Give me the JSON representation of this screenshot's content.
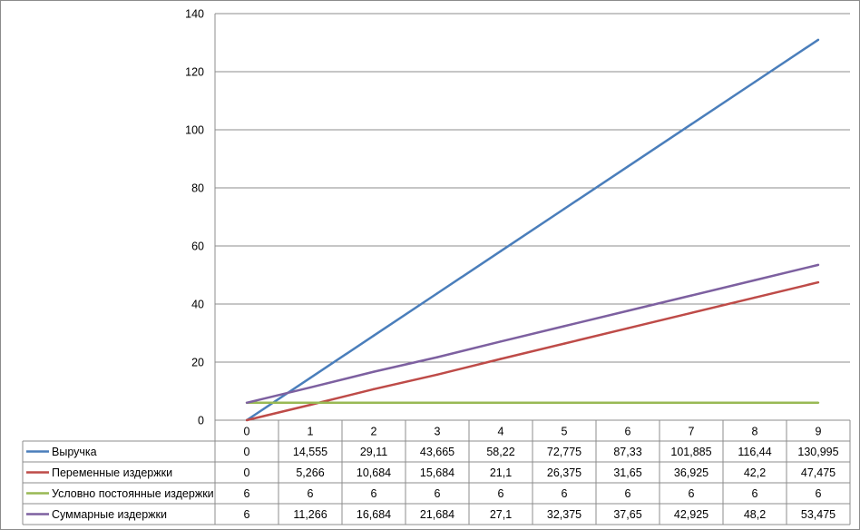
{
  "chart_data": {
    "type": "line",
    "title": "",
    "xlabel": "",
    "ylabel": "",
    "x": [
      "0",
      "1",
      "2",
      "3",
      "4",
      "5",
      "6",
      "7",
      "8",
      "9"
    ],
    "ylim": [
      0,
      140
    ],
    "yticks": [
      "0",
      "20",
      "40",
      "60",
      "80",
      "100",
      "120",
      "140"
    ],
    "grid": true,
    "legend": "data-table-bottom",
    "series": [
      {
        "name": "Выручка",
        "color": "#4a7ebb",
        "values": [
          0,
          14.555,
          29.11,
          43.665,
          58.22,
          72.775,
          87.33,
          101.885,
          116.44,
          130.995
        ],
        "labels": [
          "0",
          "14,555",
          "29,11",
          "43,665",
          "58,22",
          "72,775",
          "87,33",
          "101,885",
          "116,44",
          "130,995"
        ]
      },
      {
        "name": "Переменные издержки",
        "color": "#be4b48",
        "values": [
          0,
          5.266,
          10.684,
          15.684,
          21.1,
          26.375,
          31.65,
          36.925,
          42.2,
          47.475
        ],
        "labels": [
          "0",
          "5,266",
          "10,684",
          "15,684",
          "21,1",
          "26,375",
          "31,65",
          "36,925",
          "42,2",
          "47,475"
        ]
      },
      {
        "name": "Условно постоянные издержки",
        "color": "#98b954",
        "values": [
          6,
          6,
          6,
          6,
          6,
          6,
          6,
          6,
          6,
          6
        ],
        "labels": [
          "6",
          "6",
          "6",
          "6",
          "6",
          "6",
          "6",
          "6",
          "6",
          "6"
        ]
      },
      {
        "name": "Суммарные издержки",
        "color": "#7d60a0",
        "values": [
          6,
          11.266,
          16.684,
          21.684,
          27.1,
          32.375,
          37.65,
          42.925,
          48.2,
          53.475
        ],
        "labels": [
          "6",
          "11,266",
          "16,684",
          "21,684",
          "27,1",
          "32,375",
          "37,65",
          "42,925",
          "48,2",
          "53,475"
        ]
      }
    ]
  }
}
